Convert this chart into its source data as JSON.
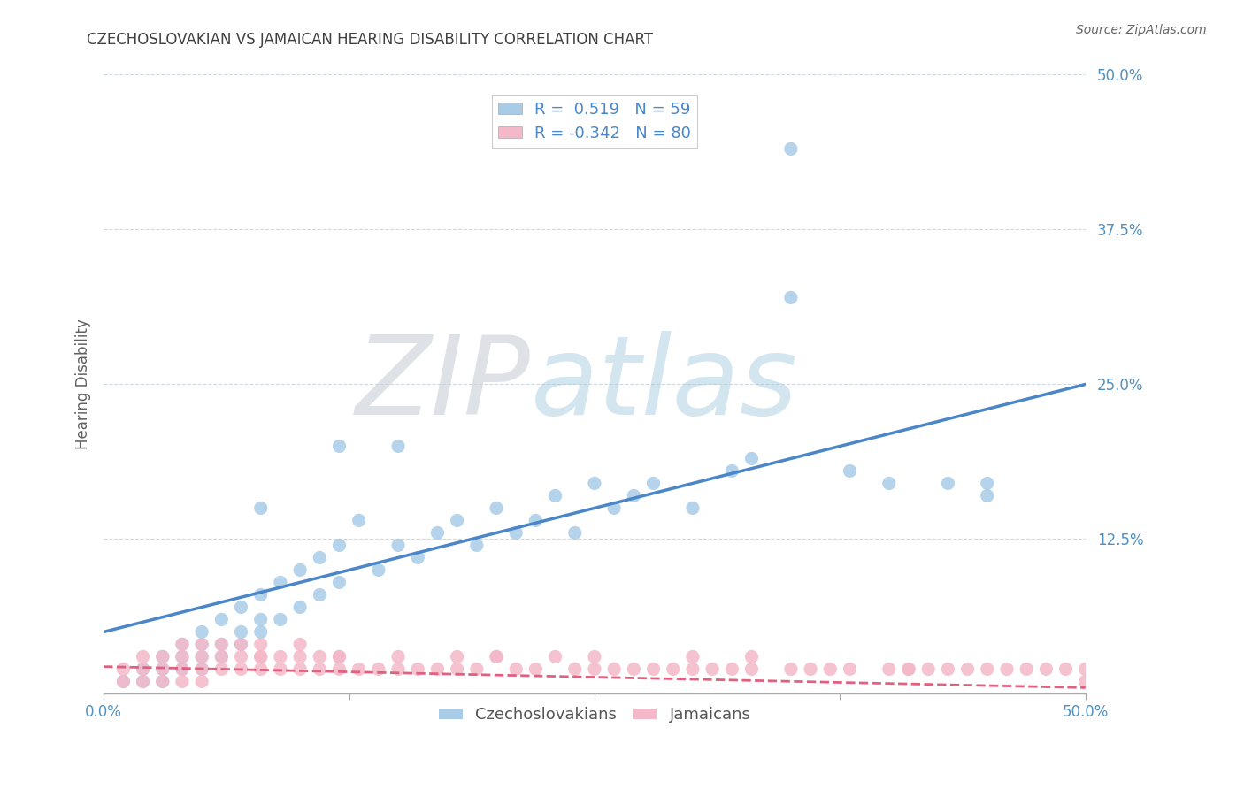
{
  "title": "CZECHOSLOVAKIAN VS JAMAICAN HEARING DISABILITY CORRELATION CHART",
  "source": "Source: ZipAtlas.com",
  "ylabel": "Hearing Disability",
  "xlim": [
    0.0,
    0.5
  ],
  "ylim": [
    0.0,
    0.5
  ],
  "xticks": [
    0.0,
    0.125,
    0.25,
    0.375,
    0.5
  ],
  "yticks": [
    0.0,
    0.125,
    0.25,
    0.375,
    0.5
  ],
  "blue_R": 0.519,
  "blue_N": 59,
  "pink_R": -0.342,
  "pink_N": 80,
  "blue_color": "#a8cce8",
  "pink_color": "#f4b8c8",
  "blue_line_color": "#4a86c8",
  "pink_line_color": "#e06080",
  "legend_label_blue": "Czechoslovakians",
  "legend_label_pink": "Jamaicans",
  "background_color": "#ffffff",
  "grid_color": "#d0d8e0",
  "title_color": "#404040",
  "axis_label_color": "#606060",
  "tick_color": "#5090c0",
  "blue_x": [
    0.01,
    0.02,
    0.02,
    0.03,
    0.03,
    0.03,
    0.04,
    0.04,
    0.04,
    0.05,
    0.05,
    0.05,
    0.05,
    0.06,
    0.06,
    0.06,
    0.07,
    0.07,
    0.07,
    0.08,
    0.08,
    0.08,
    0.09,
    0.09,
    0.1,
    0.1,
    0.11,
    0.11,
    0.12,
    0.12,
    0.13,
    0.14,
    0.15,
    0.16,
    0.17,
    0.18,
    0.19,
    0.2,
    0.21,
    0.22,
    0.23,
    0.24,
    0.25,
    0.26,
    0.27,
    0.28,
    0.3,
    0.32,
    0.35,
    0.38,
    0.4,
    0.43,
    0.45,
    0.12,
    0.08,
    0.35,
    0.45,
    0.33,
    0.15
  ],
  "blue_y": [
    0.01,
    0.01,
    0.02,
    0.01,
    0.02,
    0.03,
    0.02,
    0.03,
    0.04,
    0.02,
    0.03,
    0.04,
    0.05,
    0.03,
    0.04,
    0.06,
    0.04,
    0.05,
    0.07,
    0.05,
    0.06,
    0.08,
    0.06,
    0.09,
    0.07,
    0.1,
    0.08,
    0.11,
    0.09,
    0.12,
    0.14,
    0.1,
    0.12,
    0.11,
    0.13,
    0.14,
    0.12,
    0.15,
    0.13,
    0.14,
    0.16,
    0.13,
    0.17,
    0.15,
    0.16,
    0.17,
    0.15,
    0.18,
    0.44,
    0.18,
    0.17,
    0.17,
    0.16,
    0.2,
    0.15,
    0.32,
    0.17,
    0.19,
    0.2
  ],
  "pink_x": [
    0.01,
    0.01,
    0.02,
    0.02,
    0.02,
    0.03,
    0.03,
    0.03,
    0.04,
    0.04,
    0.04,
    0.04,
    0.05,
    0.05,
    0.05,
    0.05,
    0.06,
    0.06,
    0.06,
    0.07,
    0.07,
    0.07,
    0.08,
    0.08,
    0.08,
    0.09,
    0.09,
    0.1,
    0.1,
    0.1,
    0.11,
    0.11,
    0.12,
    0.12,
    0.13,
    0.14,
    0.15,
    0.16,
    0.17,
    0.18,
    0.19,
    0.2,
    0.21,
    0.22,
    0.23,
    0.24,
    0.25,
    0.26,
    0.27,
    0.28,
    0.29,
    0.3,
    0.31,
    0.32,
    0.33,
    0.35,
    0.36,
    0.38,
    0.4,
    0.41,
    0.42,
    0.43,
    0.44,
    0.45,
    0.46,
    0.47,
    0.48,
    0.49,
    0.5,
    0.5,
    0.33,
    0.37,
    0.41,
    0.3,
    0.25,
    0.2,
    0.18,
    0.15,
    0.12,
    0.08
  ],
  "pink_y": [
    0.01,
    0.02,
    0.01,
    0.02,
    0.03,
    0.01,
    0.02,
    0.03,
    0.01,
    0.02,
    0.03,
    0.04,
    0.01,
    0.02,
    0.03,
    0.04,
    0.02,
    0.03,
    0.04,
    0.02,
    0.03,
    0.04,
    0.02,
    0.03,
    0.04,
    0.02,
    0.03,
    0.02,
    0.03,
    0.04,
    0.02,
    0.03,
    0.02,
    0.03,
    0.02,
    0.02,
    0.02,
    0.02,
    0.02,
    0.02,
    0.02,
    0.03,
    0.02,
    0.02,
    0.03,
    0.02,
    0.03,
    0.02,
    0.02,
    0.02,
    0.02,
    0.02,
    0.02,
    0.02,
    0.02,
    0.02,
    0.02,
    0.02,
    0.02,
    0.02,
    0.02,
    0.02,
    0.02,
    0.02,
    0.02,
    0.02,
    0.02,
    0.02,
    0.01,
    0.02,
    0.03,
    0.02,
    0.02,
    0.03,
    0.02,
    0.03,
    0.03,
    0.03,
    0.03,
    0.03
  ],
  "blue_line_x0": 0.0,
  "blue_line_y0": 0.05,
  "blue_line_x1": 0.5,
  "blue_line_y1": 0.25,
  "pink_line_x0": 0.0,
  "pink_line_y0": 0.022,
  "pink_line_x1": 0.5,
  "pink_line_y1": 0.005
}
